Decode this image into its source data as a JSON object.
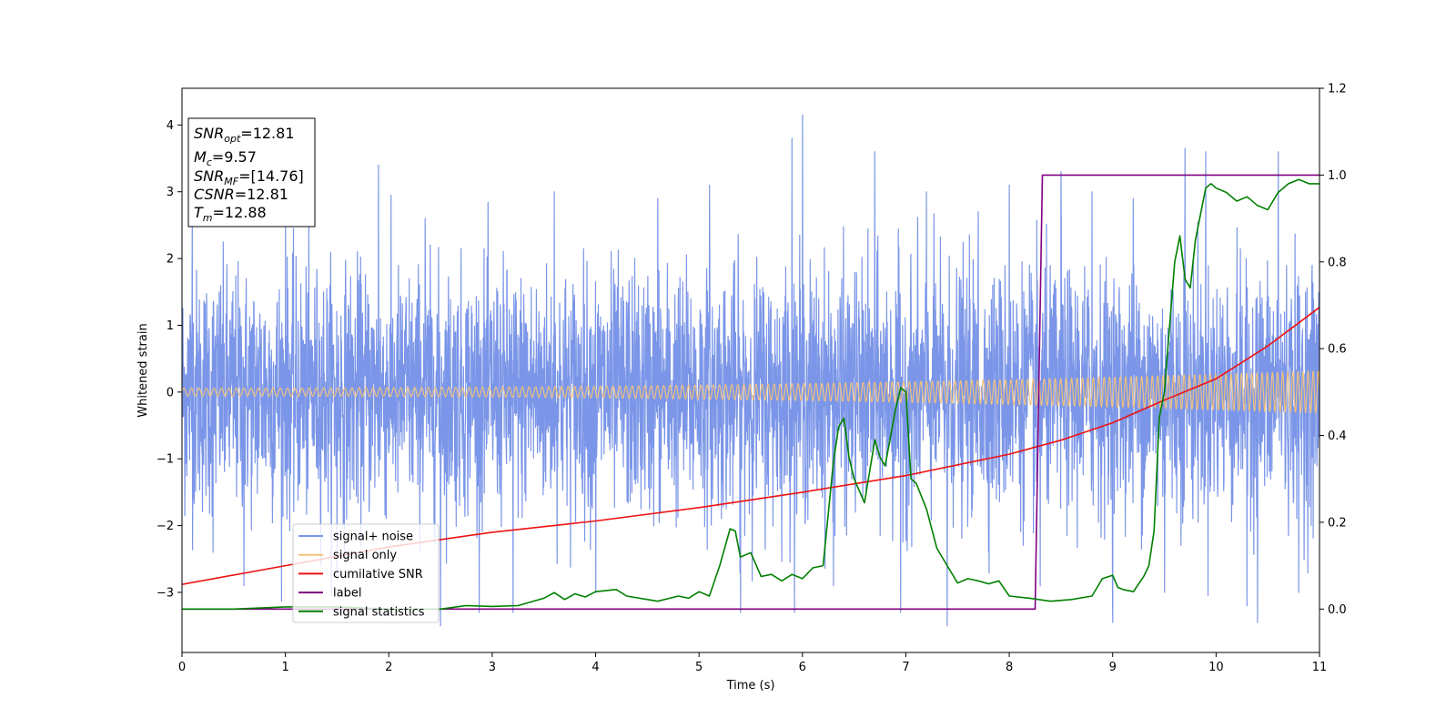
{
  "chart_data": {
    "type": "line",
    "xlabel": "Time (s)",
    "ylabel": "Whitened strain",
    "xlim": [
      0,
      11
    ],
    "ylim_left": [
      -3.9,
      4.55
    ],
    "ylim_right": [
      -0.1,
      1.2
    ],
    "xticks": [
      "0",
      "1",
      "2",
      "3",
      "4",
      "5",
      "6",
      "7",
      "8",
      "9",
      "10",
      "11"
    ],
    "yticks_left": [
      "−3",
      "−2",
      "−1",
      "0",
      "1",
      "2",
      "3",
      "4"
    ],
    "yticks_right": [
      "0.0",
      "0.2",
      "0.4",
      "0.6",
      "0.8",
      "1.0",
      "1.2"
    ],
    "legend_position": "lower-left",
    "info_box": {
      "snr_opt": {
        "label": "SNR",
        "sub": "opt",
        "value": "=12.81"
      },
      "mc": {
        "label": "M",
        "sub": "c",
        "value": "=9.57"
      },
      "snr_mf": {
        "label": "SNR",
        "sub": "MF",
        "value": "=[14.76]"
      },
      "csnr": {
        "label": "CSNR",
        "value": "=12.81"
      },
      "tm": {
        "label": "T",
        "sub": "m",
        "value": "=12.88"
      }
    },
    "series": [
      {
        "name": "signal+ noise",
        "color": "#7b96e8",
        "axis": "left",
        "style": "noise",
        "sigma": 0.9,
        "peaks": [
          [
            0.1,
            2.9
          ],
          [
            0.3,
            -2.4
          ],
          [
            0.6,
            -2.9
          ],
          [
            1.0,
            2.7
          ],
          [
            1.5,
            -2.8
          ],
          [
            1.9,
            3.4
          ],
          [
            2.35,
            2.6
          ],
          [
            2.5,
            -3.5
          ],
          [
            3.2,
            -3.3
          ],
          [
            3.6,
            3.0
          ],
          [
            4.0,
            -3.0
          ],
          [
            4.6,
            2.9
          ],
          [
            5.1,
            3.1
          ],
          [
            5.4,
            -3.3
          ],
          [
            5.9,
            3.8
          ],
          [
            6.0,
            4.15
          ],
          [
            6.3,
            -2.9
          ],
          [
            6.7,
            3.6
          ],
          [
            6.95,
            -3.3
          ],
          [
            7.2,
            3.0
          ],
          [
            7.4,
            -3.5
          ],
          [
            7.7,
            2.7
          ],
          [
            8.0,
            3.1
          ],
          [
            8.3,
            -2.9
          ],
          [
            8.5,
            3.3
          ],
          [
            8.8,
            3.0
          ],
          [
            9.0,
            -3.45
          ],
          [
            9.2,
            2.9
          ],
          [
            9.5,
            -3.0
          ],
          [
            9.7,
            3.65
          ],
          [
            9.9,
            3.6
          ],
          [
            10.3,
            -3.2
          ],
          [
            10.4,
            -3.45
          ],
          [
            10.6,
            3.6
          ],
          [
            10.8,
            -3.0
          ]
        ]
      },
      {
        "name": "signal only",
        "color": "#f5c27a",
        "axis": "left",
        "style": "chirp",
        "amp_start": 0.06,
        "amp_end": 0.32,
        "cycles": 150
      },
      {
        "name": "cumilative SNR",
        "color": "#ee1111",
        "axis": "left",
        "x": [
          0,
          1,
          2,
          3,
          4,
          5,
          6,
          7,
          8,
          8.5,
          9,
          9.5,
          10,
          10.5,
          11
        ],
        "y": [
          -2.88,
          -2.6,
          -2.32,
          -2.1,
          -1.93,
          -1.73,
          -1.5,
          -1.25,
          -0.93,
          -0.72,
          -0.46,
          -0.12,
          0.2,
          0.69,
          1.27
        ]
      },
      {
        "name": "label",
        "color": "#800080",
        "axis": "right",
        "x": [
          0,
          8.25,
          8.32,
          11
        ],
        "y": [
          0.0,
          0.0,
          1.0,
          1.0
        ]
      },
      {
        "name": "signal statistics",
        "color": "#008000",
        "axis": "right",
        "x": [
          0,
          0.5,
          1.0,
          1.5,
          2.0,
          2.5,
          2.75,
          3.0,
          3.25,
          3.5,
          3.6,
          3.7,
          3.8,
          3.9,
          4.0,
          4.2,
          4.3,
          4.5,
          4.6,
          4.8,
          4.9,
          5.0,
          5.1,
          5.2,
          5.3,
          5.35,
          5.4,
          5.5,
          5.6,
          5.7,
          5.8,
          5.9,
          6.0,
          6.1,
          6.2,
          6.3,
          6.35,
          6.4,
          6.45,
          6.5,
          6.6,
          6.7,
          6.75,
          6.8,
          6.9,
          6.95,
          7.0,
          7.05,
          7.1,
          7.2,
          7.3,
          7.4,
          7.5,
          7.6,
          7.7,
          7.8,
          7.9,
          8.0,
          8.2,
          8.4,
          8.6,
          8.8,
          8.9,
          9.0,
          9.05,
          9.1,
          9.2,
          9.3,
          9.35,
          9.4,
          9.45,
          9.5,
          9.55,
          9.6,
          9.65,
          9.7,
          9.75,
          9.8,
          9.85,
          9.9,
          9.95,
          10.0,
          10.1,
          10.2,
          10.3,
          10.4,
          10.5,
          10.6,
          10.7,
          10.8,
          10.9,
          11.0
        ],
        "y": [
          0.0,
          0.0,
          0.005,
          0.005,
          0.0,
          0.0,
          0.008,
          0.006,
          0.008,
          0.025,
          0.038,
          0.022,
          0.035,
          0.028,
          0.04,
          0.045,
          0.03,
          0.022,
          0.018,
          0.03,
          0.025,
          0.04,
          0.03,
          0.1,
          0.185,
          0.18,
          0.12,
          0.13,
          0.075,
          0.08,
          0.065,
          0.08,
          0.07,
          0.095,
          0.1,
          0.34,
          0.42,
          0.44,
          0.35,
          0.3,
          0.245,
          0.39,
          0.35,
          0.33,
          0.46,
          0.51,
          0.5,
          0.3,
          0.29,
          0.23,
          0.14,
          0.1,
          0.06,
          0.07,
          0.065,
          0.058,
          0.065,
          0.03,
          0.025,
          0.018,
          0.022,
          0.03,
          0.07,
          0.078,
          0.05,
          0.045,
          0.04,
          0.075,
          0.1,
          0.18,
          0.44,
          0.5,
          0.65,
          0.8,
          0.86,
          0.76,
          0.74,
          0.85,
          0.91,
          0.97,
          0.98,
          0.97,
          0.96,
          0.94,
          0.95,
          0.93,
          0.92,
          0.96,
          0.98,
          0.99,
          0.98,
          0.98
        ]
      }
    ]
  }
}
